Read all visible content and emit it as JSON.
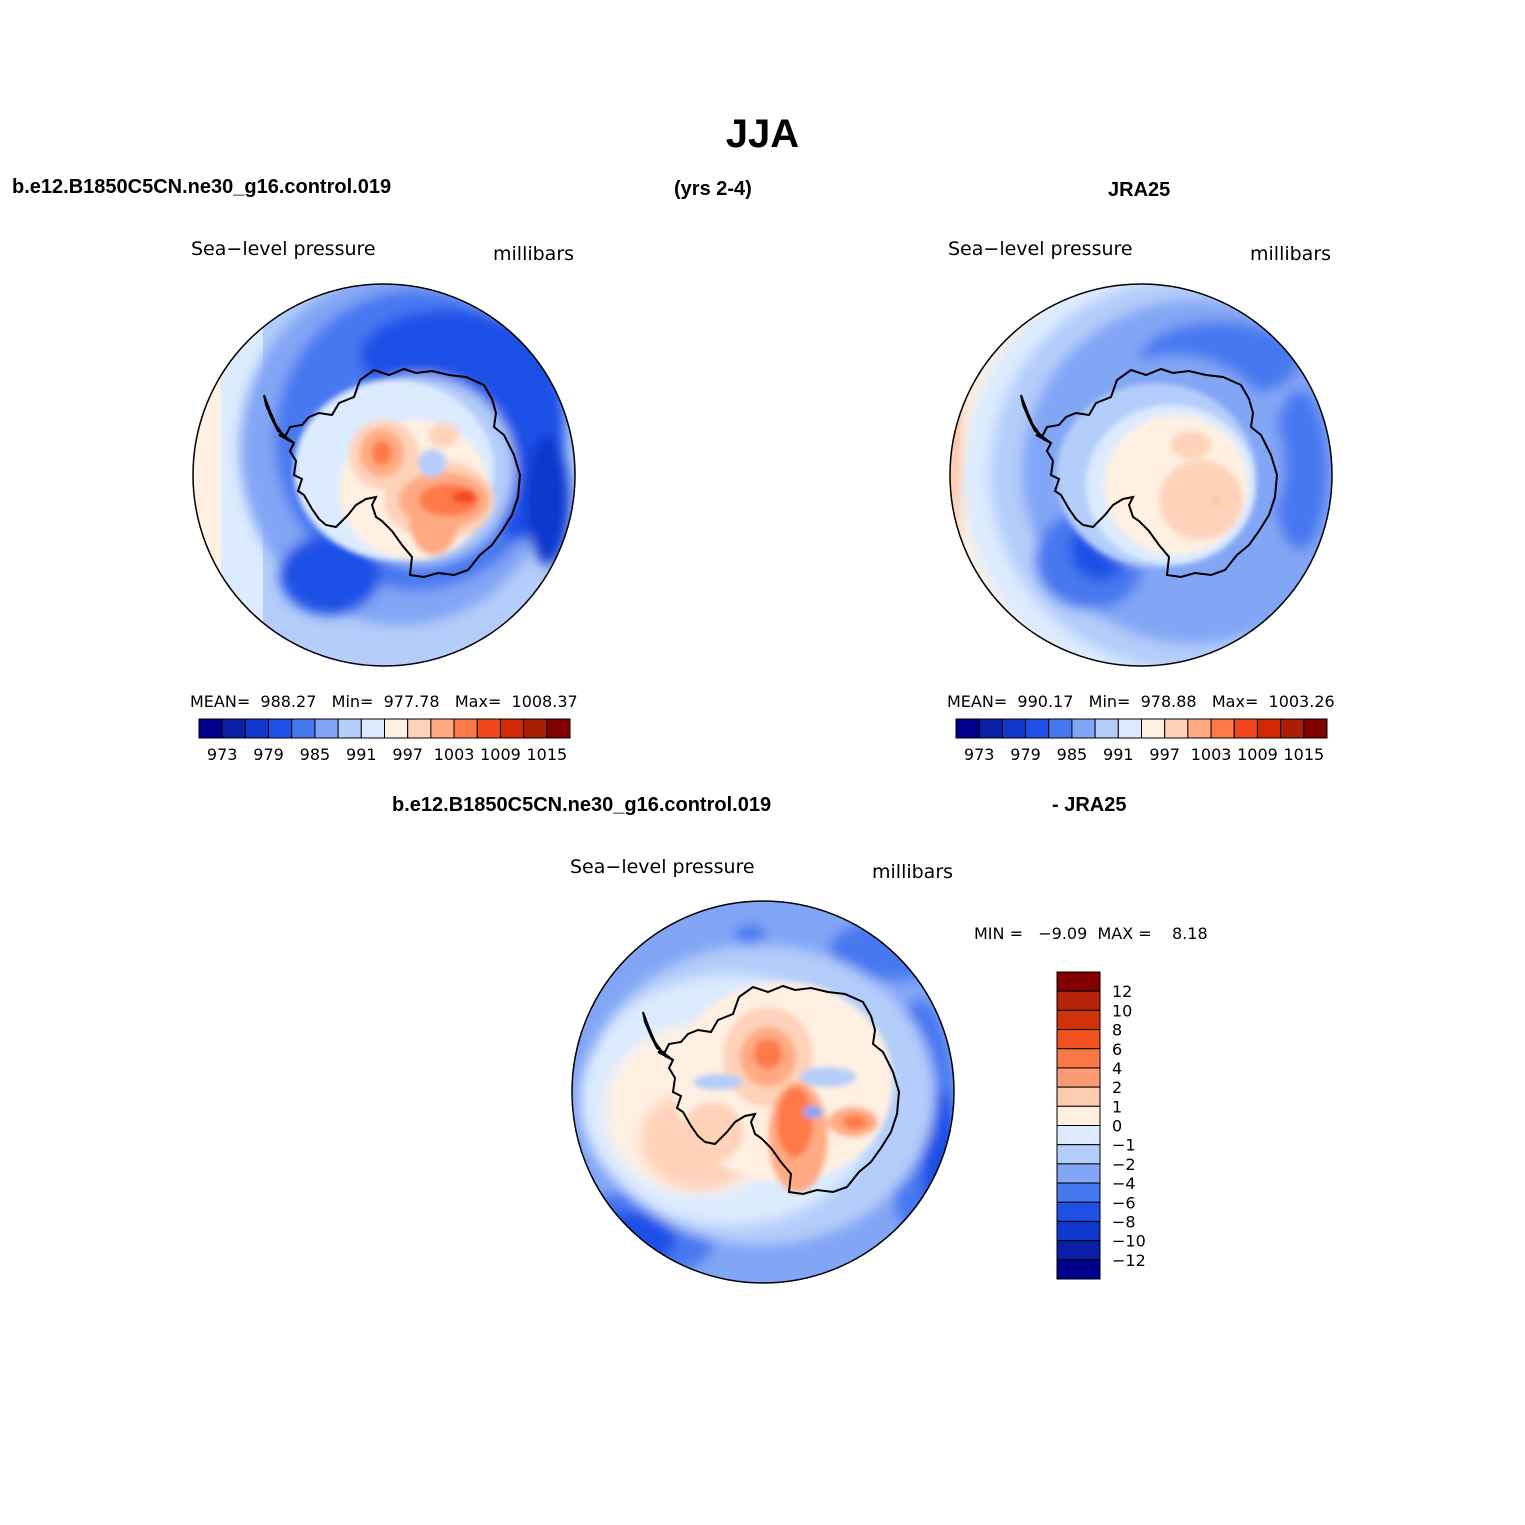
{
  "title": "JJA",
  "header": {
    "case_name": "b.e12.B1850C5CN.ne30_g16.control.019",
    "years": "(yrs 2-4)",
    "obs_name": "JRA25"
  },
  "panels": [
    {
      "variable": "Sea−level pressure",
      "units": "millibars",
      "stats": "MEAN=  988.27   Min=  977.78   Max=  1008.37"
    },
    {
      "variable": "Sea−level pressure",
      "units": "millibars",
      "stats": "MEAN=  990.17   Min=  978.88   Max=  1003.26"
    }
  ],
  "diff_header": {
    "case_name": "b.e12.B1850C5CN.ne30_g16.control.019",
    "obs_name": "- JRA25"
  },
  "diff_panel": {
    "variable": "Sea−level pressure",
    "units": "millibars",
    "stats": "MIN =   −9.09  MAX =    8.18"
  },
  "colorbar_abs": {
    "colors": [
      "#00008c",
      "#0a1ea8",
      "#0f37cd",
      "#1e50e6",
      "#4678f0",
      "#82a5f5",
      "#b4cdfa",
      "#dcebff",
      "#fff0e1",
      "#ffd2b9",
      "#ffaa82",
      "#ff7846",
      "#f0461e",
      "#d22805",
      "#aa1e05",
      "#820000"
    ],
    "labels": [
      "973",
      "979",
      "985",
      "991",
      "997",
      "1003",
      "1009",
      "1015"
    ]
  },
  "colorbar_diff": {
    "colors": [
      "#820000",
      "#b4230a",
      "#d2320a",
      "#f0501e",
      "#fa7846",
      "#fa9b73",
      "#fccbb0",
      "#fff0e1",
      "#dcebff",
      "#b4cdfa",
      "#82a5f5",
      "#4678f0",
      "#1e50e6",
      "#0f37cd",
      "#0a1ea8",
      "#00008c"
    ],
    "labels": [
      "12",
      "10",
      "8",
      "6",
      "4",
      "2",
      "1",
      "0",
      "−1",
      "−2",
      "−4",
      "−6",
      "−8",
      "−10",
      "−12"
    ]
  },
  "chart_data": [
    {
      "type": "heatmap",
      "title": "Sea−level pressure",
      "units": "millibars",
      "projection": "south polar stereographic",
      "mean": 988.27,
      "min": 977.78,
      "max": 1008.37,
      "contour_levels": [
        973,
        976,
        979,
        982,
        985,
        988,
        991,
        994,
        997,
        1000,
        1003,
        1006,
        1009,
        1012,
        1015
      ]
    },
    {
      "type": "heatmap",
      "title": "Sea−level pressure",
      "units": "millibars",
      "projection": "south polar stereographic",
      "mean": 990.17,
      "min": 978.88,
      "max": 1003.26,
      "contour_levels": [
        973,
        976,
        979,
        982,
        985,
        988,
        991,
        994,
        997,
        1000,
        1003,
        1006,
        1009,
        1012,
        1015
      ]
    },
    {
      "type": "heatmap",
      "title": "Sea−level pressure",
      "units": "millibars",
      "projection": "south polar stereographic",
      "min": -9.09,
      "max": 8.18,
      "contour_levels": [
        -12,
        -10,
        -8,
        -6,
        -4,
        -2,
        -1,
        0,
        1,
        2,
        4,
        6,
        8,
        10,
        12
      ]
    }
  ]
}
